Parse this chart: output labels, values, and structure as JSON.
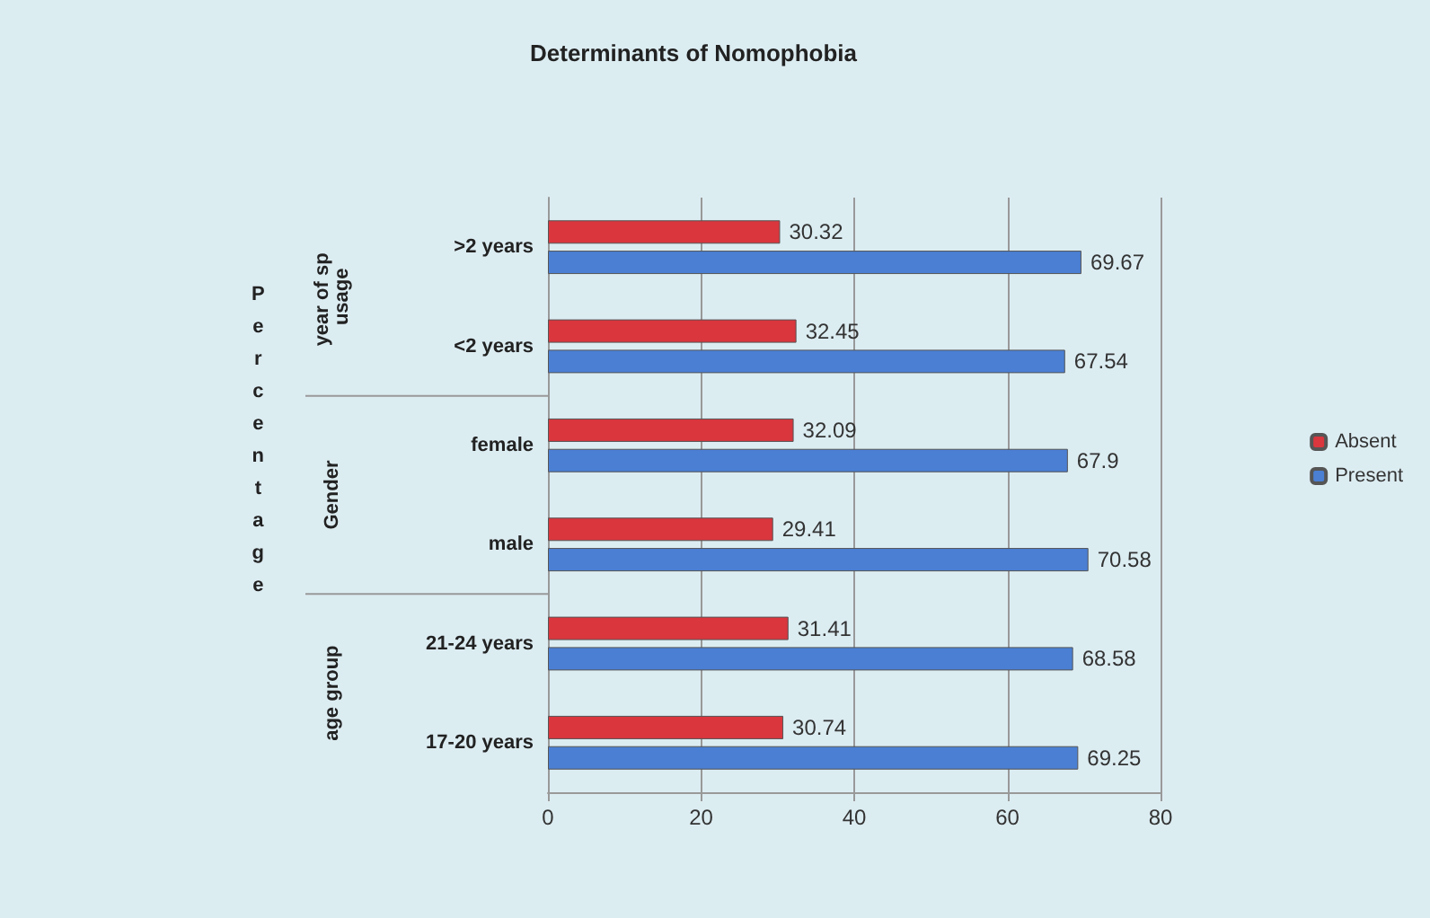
{
  "chart_data": {
    "type": "bar",
    "orientation": "horizontal",
    "title": "Determinants of Nomophobia",
    "ylabel": "Percentage",
    "categories": [
      ">2 years",
      "<2 years",
      "female",
      "male",
      "21-24 years",
      "17-20 years"
    ],
    "series": [
      {
        "name": "Absent",
        "color": "#d9363e",
        "values": [
          30.32,
          32.45,
          32.09,
          29.41,
          31.41,
          30.74
        ]
      },
      {
        "name": "Present",
        "color": "#4a7fd4",
        "values": [
          69.67,
          67.54,
          67.9,
          70.58,
          68.58,
          69.25
        ]
      }
    ],
    "annotations": [
      "year of sp usage",
      "Gender",
      "age group"
    ],
    "xlim": [
      0,
      80
    ],
    "xticks": [
      0,
      20,
      40,
      60,
      80
    ],
    "grid": "x",
    "legend": "right",
    "data_labels": true
  }
}
